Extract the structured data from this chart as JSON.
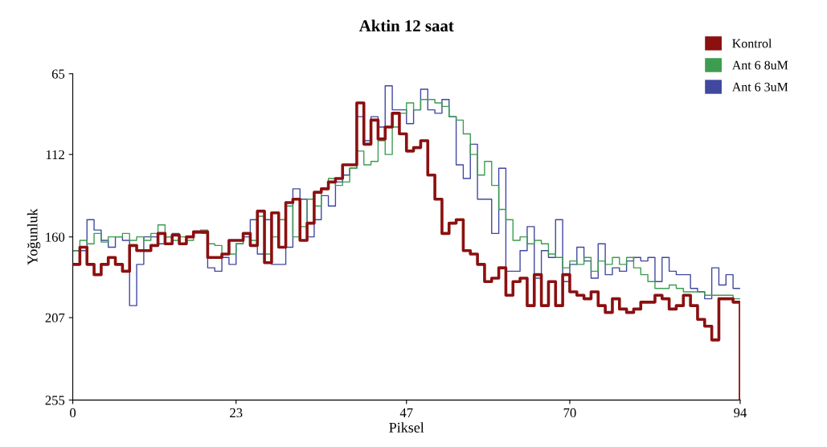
{
  "chart_data": {
    "type": "step",
    "title": "Aktin 12 saat",
    "xlabel": "Piksel",
    "ylabel": "Yoğunluk",
    "x": [
      0,
      1,
      2,
      3,
      4,
      5,
      6,
      7,
      8,
      9,
      10,
      11,
      12,
      13,
      14,
      15,
      16,
      17,
      18,
      19,
      20,
      21,
      22,
      23,
      24,
      25,
      26,
      27,
      28,
      29,
      30,
      31,
      32,
      33,
      34,
      35,
      36,
      37,
      38,
      39,
      40,
      41,
      42,
      43,
      44,
      45,
      46,
      47,
      48,
      49,
      50,
      51,
      52,
      53,
      54,
      55,
      56,
      57,
      58,
      59,
      60,
      61,
      62,
      63,
      64,
      65,
      66,
      67,
      68,
      69,
      70,
      71,
      72,
      73,
      74,
      75,
      76,
      77,
      78,
      79,
      80,
      81,
      82,
      83,
      84,
      85,
      86,
      87,
      88,
      89,
      90,
      91,
      92,
      93,
      94
    ],
    "series": [
      {
        "name": "Kontrol",
        "color": "#8b1010",
        "values": [
          176,
          166,
          176,
          182,
          176,
          172,
          176,
          180,
          165,
          168,
          168,
          165,
          158,
          164,
          159,
          164,
          160,
          157,
          157,
          172,
          172,
          170,
          162,
          162,
          158,
          165,
          145,
          175,
          146,
          166,
          140,
          138,
          162,
          152,
          134,
          132,
          128,
          126,
          118,
          118,
          82,
          106,
          92,
          103,
          96,
          88,
          100,
          110,
          108,
          104,
          124,
          138,
          158,
          152,
          150,
          168,
          170,
          176,
          186,
          184,
          178,
          194,
          186,
          184,
          200,
          182,
          200,
          186,
          200,
          182,
          192,
          194,
          196,
          192,
          200,
          204,
          196,
          202,
          204,
          202,
          198,
          198,
          194,
          196,
          202,
          200,
          194,
          200,
          208,
          212,
          220,
          196,
          196,
          198,
          255
        ]
      },
      {
        "name": "Ant 6 8uM",
        "color": "#3c9c50",
        "values": [
          168,
          162,
          164,
          158,
          163,
          160,
          160,
          158,
          162,
          160,
          162,
          158,
          153,
          160,
          162,
          160,
          162,
          158,
          156,
          164,
          165,
          170,
          170,
          164,
          158,
          162,
          148,
          170,
          160,
          150,
          142,
          160,
          154,
          138,
          142,
          132,
          126,
          130,
          128,
          120,
          110,
          118,
          116,
          104,
          112,
          96,
          88,
          82,
          86,
          80,
          80,
          82,
          84,
          90,
          92,
          100,
          112,
          124,
          116,
          130,
          144,
          150,
          162,
          160,
          164,
          162,
          164,
          170,
          172,
          178,
          174,
          176,
          172,
          180,
          174,
          176,
          172,
          176,
          172,
          178,
          182,
          186,
          190,
          190,
          188,
          190,
          192,
          192,
          192,
          194,
          194,
          194,
          194,
          196,
          196
        ]
      },
      {
        "name": "Ant 6 3uM",
        "color": "#4048a0",
        "values": [
          168,
          168,
          150,
          156,
          162,
          166,
          160,
          162,
          200,
          176,
          160,
          160,
          164,
          160,
          158,
          164,
          160,
          158,
          158,
          178,
          180,
          172,
          176,
          164,
          160,
          150,
          170,
          150,
          176,
          176,
          166,
          132,
          138,
          160,
          150,
          136,
          142,
          128,
          124,
          120,
          90,
          104,
          90,
          96,
          72,
          86,
          86,
          94,
          86,
          74,
          86,
          88,
          80,
          90,
          118,
          126,
          106,
          138,
          138,
          158,
          120,
          180,
          180,
          168,
          154,
          184,
          168,
          172,
          150,
          186,
          176,
          166,
          174,
          184,
          164,
          182,
          178,
          180,
          174,
          172,
          174,
          172,
          186,
          172,
          180,
          182,
          182,
          190,
          192,
          196,
          178,
          188,
          182,
          190,
          190
        ]
      }
    ],
    "xlim": [
      0,
      94
    ],
    "xticks": [
      0,
      23,
      47,
      70,
      94
    ],
    "ylim": [
      255,
      65
    ],
    "yticks": [
      65,
      112,
      160,
      207,
      255
    ],
    "grid": false,
    "legend": "top right"
  }
}
